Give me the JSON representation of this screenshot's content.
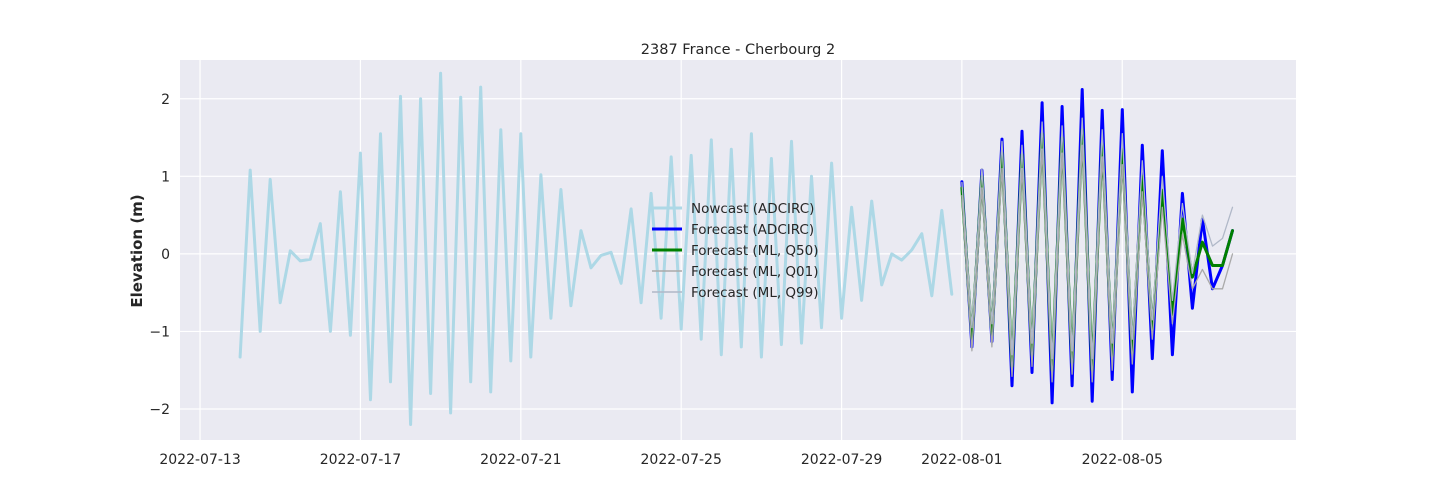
{
  "chart_data": {
    "type": "line",
    "title": "2387 France - Cherbourg 2",
    "xlabel": "",
    "ylabel": "Elevation (m)",
    "x_axis": {
      "type": "date",
      "range": [
        "2022-07-12T12:00",
        "2022-08-09T08:00"
      ],
      "ticks": [
        "2022-07-13",
        "2022-07-17",
        "2022-07-21",
        "2022-07-25",
        "2022-07-29",
        "2022-08-01",
        "2022-08-05"
      ]
    },
    "y_axis": {
      "range": [
        -2.4,
        2.5
      ],
      "ticks": [
        -2,
        -1,
        0,
        1,
        2
      ],
      "tick_labels": [
        "−2",
        "−1",
        "0",
        "1",
        "2"
      ]
    },
    "grid": true,
    "legend_placement": "center",
    "background": "#eaeaf2",
    "series": [
      {
        "name": "Nowcast (ADCIRC)",
        "color": "#add8e6",
        "width": 3,
        "x": [
          "2022-07-14T00:00",
          "2022-07-14T06:00",
          "2022-07-14T12:00",
          "2022-07-14T18:00",
          "2022-07-15T00:00",
          "2022-07-15T06:00",
          "2022-07-15T12:00",
          "2022-07-15T18:00",
          "2022-07-16T00:00",
          "2022-07-16T06:00",
          "2022-07-16T12:00",
          "2022-07-16T18:00",
          "2022-07-17T00:00",
          "2022-07-17T06:00",
          "2022-07-17T12:00",
          "2022-07-17T18:00",
          "2022-07-18T00:00",
          "2022-07-18T06:00",
          "2022-07-18T12:00",
          "2022-07-18T18:00",
          "2022-07-19T00:00",
          "2022-07-19T06:00",
          "2022-07-19T12:00",
          "2022-07-19T18:00",
          "2022-07-20T00:00",
          "2022-07-20T06:00",
          "2022-07-20T12:00",
          "2022-07-20T18:00",
          "2022-07-21T00:00",
          "2022-07-21T06:00",
          "2022-07-21T12:00",
          "2022-07-21T18:00",
          "2022-07-22T00:00",
          "2022-07-22T06:00",
          "2022-07-22T12:00",
          "2022-07-22T18:00",
          "2022-07-23T00:00",
          "2022-07-23T06:00",
          "2022-07-23T12:00",
          "2022-07-23T18:00",
          "2022-07-24T00:00",
          "2022-07-24T06:00",
          "2022-07-24T12:00",
          "2022-07-24T18:00",
          "2022-07-25T00:00",
          "2022-07-25T06:00",
          "2022-07-25T12:00",
          "2022-07-25T18:00",
          "2022-07-26T00:00",
          "2022-07-26T06:00",
          "2022-07-26T12:00",
          "2022-07-26T18:00",
          "2022-07-27T00:00",
          "2022-07-27T06:00",
          "2022-07-27T12:00",
          "2022-07-27T18:00",
          "2022-07-28T00:00",
          "2022-07-28T06:00",
          "2022-07-28T12:00",
          "2022-07-28T18:00",
          "2022-07-29T00:00",
          "2022-07-29T06:00",
          "2022-07-29T12:00",
          "2022-07-29T18:00",
          "2022-07-30T00:00",
          "2022-07-30T06:00",
          "2022-07-30T12:00",
          "2022-07-30T18:00",
          "2022-07-31T00:00",
          "2022-07-31T06:00",
          "2022-07-31T12:00",
          "2022-07-31T18:00"
        ],
        "y": [
          -1.33,
          1.08,
          -1.0,
          0.96,
          -0.63,
          0.04,
          -0.09,
          -0.07,
          0.39,
          -1.0,
          0.8,
          -1.05,
          1.3,
          -1.88,
          1.55,
          -1.65,
          2.03,
          -2.2,
          2.0,
          -1.8,
          2.33,
          -2.05,
          2.02,
          -1.65,
          2.15,
          -1.78,
          1.6,
          -1.38,
          1.55,
          -1.33,
          1.02,
          -0.83,
          0.83,
          -0.67,
          0.3,
          -0.18,
          -0.02,
          0.02,
          -0.38,
          0.58,
          -0.63,
          0.78,
          -0.83,
          1.25,
          -0.97,
          1.27,
          -1.1,
          1.47,
          -1.3,
          1.35,
          -1.2,
          1.55,
          -1.33,
          1.23,
          -1.17,
          1.45,
          -1.15,
          1.0,
          -0.95,
          1.17,
          -0.83,
          0.6,
          -0.6,
          0.68,
          -0.4,
          0.0,
          -0.08,
          0.05,
          0.26,
          -0.54,
          0.56,
          -0.52
        ]
      },
      {
        "name": "Forecast (ADCIRC)",
        "color": "#0000ff",
        "width": 3,
        "x": [
          "2022-08-01T00:00",
          "2022-08-01T06:00",
          "2022-08-01T12:00",
          "2022-08-01T18:00",
          "2022-08-02T00:00",
          "2022-08-02T06:00",
          "2022-08-02T12:00",
          "2022-08-02T18:00",
          "2022-08-03T00:00",
          "2022-08-03T06:00",
          "2022-08-03T12:00",
          "2022-08-03T18:00",
          "2022-08-04T00:00",
          "2022-08-04T06:00",
          "2022-08-04T12:00",
          "2022-08-04T18:00",
          "2022-08-05T00:00",
          "2022-08-05T06:00",
          "2022-08-05T12:00",
          "2022-08-05T18:00",
          "2022-08-06T00:00",
          "2022-08-06T06:00",
          "2022-08-06T12:00",
          "2022-08-06T18:00",
          "2022-08-07T00:00",
          "2022-08-07T06:00",
          "2022-08-07T12:00",
          "2022-08-07T18:00"
        ],
        "y": [
          0.93,
          -1.2,
          1.08,
          -1.13,
          1.48,
          -1.7,
          1.58,
          -1.53,
          1.95,
          -1.92,
          1.9,
          -1.7,
          2.12,
          -1.9,
          1.85,
          -1.62,
          1.86,
          -1.78,
          1.4,
          -1.35,
          1.33,
          -1.3,
          0.78,
          -0.7,
          0.45,
          -0.45,
          -0.15,
          0.3
        ]
      },
      {
        "name": "Forecast (ML, Q50)",
        "color": "#008000",
        "width": 3,
        "x": [
          "2022-08-01T00:00",
          "2022-08-01T06:00",
          "2022-08-01T12:00",
          "2022-08-01T18:00",
          "2022-08-02T00:00",
          "2022-08-02T06:00",
          "2022-08-02T12:00",
          "2022-08-02T18:00",
          "2022-08-03T00:00",
          "2022-08-03T06:00",
          "2022-08-03T12:00",
          "2022-08-03T18:00",
          "2022-08-04T00:00",
          "2022-08-04T06:00",
          "2022-08-04T12:00",
          "2022-08-04T18:00",
          "2022-08-05T00:00",
          "2022-08-05T06:00",
          "2022-08-05T12:00",
          "2022-08-05T18:00",
          "2022-08-06T00:00",
          "2022-08-06T06:00",
          "2022-08-06T12:00",
          "2022-08-06T18:00",
          "2022-08-07T00:00",
          "2022-08-07T06:00",
          "2022-08-07T12:00",
          "2022-08-07T18:00",
          "2022-08-08T00:00"
        ],
        "y": [
          0.85,
          -1.1,
          1.0,
          -1.05,
          1.3,
          -1.45,
          1.28,
          -1.3,
          1.55,
          -1.5,
          1.5,
          -1.4,
          1.6,
          -1.5,
          1.42,
          -1.32,
          1.35,
          -1.28,
          1.0,
          -0.98,
          0.82,
          -0.78,
          0.45,
          -0.3,
          0.15,
          -0.15,
          -0.15,
          0.3,
          null
        ]
      },
      {
        "name": "Forecast (ML, Q01)",
        "color": "#a9a9a9",
        "width": 1.3,
        "x": [
          "2022-08-01T00:00",
          "2022-08-01T06:00",
          "2022-08-01T12:00",
          "2022-08-01T18:00",
          "2022-08-02T00:00",
          "2022-08-02T06:00",
          "2022-08-02T12:00",
          "2022-08-02T18:00",
          "2022-08-03T00:00",
          "2022-08-03T06:00",
          "2022-08-03T12:00",
          "2022-08-03T18:00",
          "2022-08-04T00:00",
          "2022-08-04T06:00",
          "2022-08-04T12:00",
          "2022-08-04T18:00",
          "2022-08-05T00:00",
          "2022-08-05T06:00",
          "2022-08-05T12:00",
          "2022-08-05T18:00",
          "2022-08-06T00:00",
          "2022-08-06T06:00",
          "2022-08-06T12:00",
          "2022-08-06T18:00",
          "2022-08-07T00:00",
          "2022-08-07T06:00",
          "2022-08-07T12:00",
          "2022-08-07T18:00"
        ],
        "y": [
          0.75,
          -1.25,
          0.85,
          -1.2,
          1.1,
          -1.58,
          1.1,
          -1.45,
          1.35,
          -1.65,
          1.3,
          -1.55,
          1.4,
          -1.65,
          1.25,
          -1.5,
          1.15,
          -1.42,
          0.8,
          -1.1,
          0.6,
          -0.9,
          0.25,
          -0.45,
          -0.2,
          -0.45,
          -0.45,
          0.0
        ]
      },
      {
        "name": "Forecast (ML, Q99)",
        "color": "#b0b8c8",
        "width": 1.3,
        "x": [
          "2022-08-01T00:00",
          "2022-08-01T06:00",
          "2022-08-01T12:00",
          "2022-08-01T18:00",
          "2022-08-02T00:00",
          "2022-08-02T06:00",
          "2022-08-02T12:00",
          "2022-08-02T18:00",
          "2022-08-03T00:00",
          "2022-08-03T06:00",
          "2022-08-03T12:00",
          "2022-08-03T18:00",
          "2022-08-04T00:00",
          "2022-08-04T06:00",
          "2022-08-04T12:00",
          "2022-08-04T18:00",
          "2022-08-05T00:00",
          "2022-08-05T06:00",
          "2022-08-05T12:00",
          "2022-08-05T18:00",
          "2022-08-06T00:00",
          "2022-08-06T06:00",
          "2022-08-06T12:00",
          "2022-08-06T18:00",
          "2022-08-07T00:00",
          "2022-08-07T06:00",
          "2022-08-07T12:00",
          "2022-08-07T18:00"
        ],
        "y": [
          0.92,
          -0.95,
          1.1,
          -0.9,
          1.45,
          -1.3,
          1.4,
          -1.15,
          1.7,
          -1.35,
          1.65,
          -1.25,
          1.75,
          -1.35,
          1.6,
          -1.15,
          1.55,
          -1.1,
          1.2,
          -0.85,
          1.0,
          -0.6,
          0.65,
          -0.25,
          0.5,
          0.1,
          0.2,
          0.6
        ]
      }
    ]
  }
}
